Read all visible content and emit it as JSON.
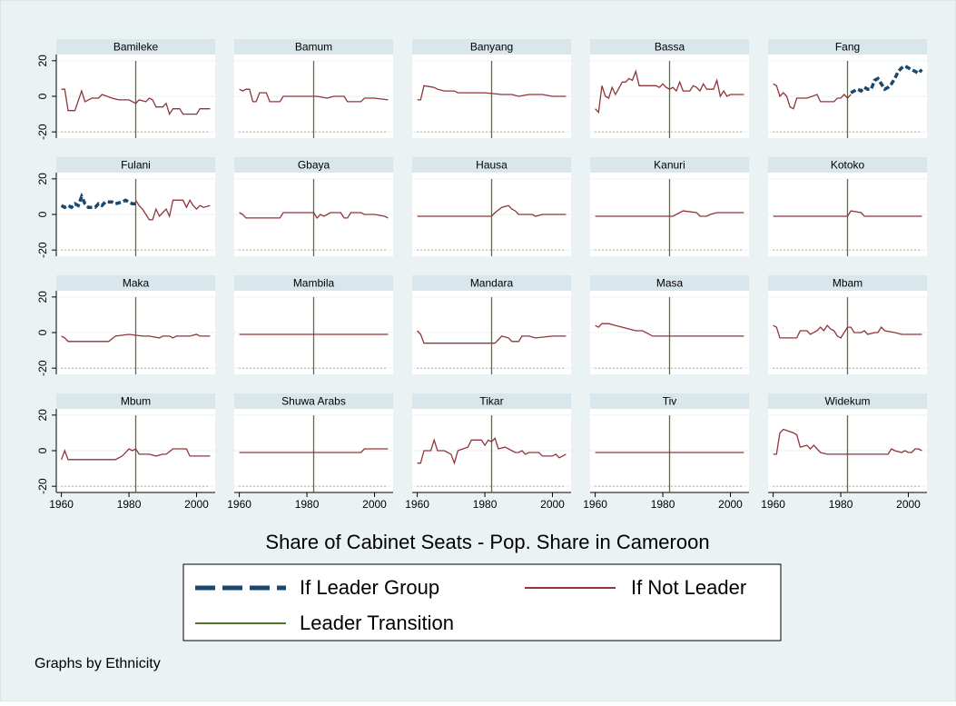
{
  "chart_data": {
    "type": "line",
    "xlabel": "Share of Cabinet Seats - Pop. Share in Cameroon",
    "note": "Graphs by Ethnicity",
    "xlim": [
      1958.5,
      2005.5
    ],
    "xticks": [
      1960,
      1980,
      2000
    ],
    "ylim": [
      -23.5,
      23.5
    ],
    "yticks": [
      -20,
      0,
      20
    ],
    "grid": true,
    "transition_x": 1982,
    "reference_y": -20,
    "series": [
      {
        "name": "If Leader Group",
        "color": "#1a476f",
        "dashed": true
      },
      {
        "name": "If Not Leader",
        "color": "#90353b"
      },
      {
        "name": "Leader Transition",
        "color": "#55752f"
      }
    ],
    "panels": [
      {
        "title": "Bamileke",
        "lines": [
          null,
          {
            "x": [
              1960,
              1961,
              1962,
              1964,
              1966,
              1967,
              1969,
              1971,
              1972,
              1975,
              1977,
              1980,
              1982,
              1983,
              1985,
              1986,
              1987,
              1988,
              1990,
              1991,
              1992,
              1993,
              1995,
              1996,
              2000,
              2001,
              2004
            ],
            "values": [
              4,
              4,
              -8,
              -8,
              3,
              -3,
              -1,
              -1,
              1,
              -1,
              -2,
              -2,
              -4,
              -2,
              -3,
              -1,
              -2,
              -6,
              -6,
              -4,
              -10,
              -7,
              -7,
              -10,
              -10,
              -7,
              -7
            ]
          }
        ]
      },
      {
        "title": "Bamum",
        "lines": [
          null,
          {
            "x": [
              1960,
              1961,
              1962,
              1963,
              1964,
              1965,
              1966,
              1968,
              1969,
              1972,
              1973,
              1983,
              1986,
              1988,
              1991,
              1992,
              1996,
              1997,
              2000,
              2004
            ],
            "values": [
              4,
              3,
              4,
              4,
              -3,
              -3,
              2,
              2,
              -3,
              -3,
              0,
              0,
              -1,
              0,
              0,
              -3,
              -3,
              -1,
              -1,
              -2
            ]
          }
        ]
      },
      {
        "title": "Banyang",
        "lines": [
          null,
          {
            "x": [
              1960,
              1961,
              1962,
              1965,
              1966,
              1968,
              1971,
              1972,
              1980,
              1985,
              1988,
              1990,
              1993,
              1997,
              2000,
              2004
            ],
            "values": [
              -2,
              -2,
              6,
              5,
              4,
              3,
              3,
              2,
              2,
              1,
              1,
              0,
              1,
              1,
              0,
              0
            ]
          }
        ]
      },
      {
        "title": "Bassa",
        "lines": [
          null,
          {
            "x": [
              1960,
              1961,
              1962,
              1963,
              1964,
              1965,
              1966,
              1968,
              1969,
              1970,
              1971,
              1972,
              1973,
              1978,
              1979,
              1980,
              1981,
              1982,
              1983,
              1984,
              1985,
              1986,
              1988,
              1989,
              1990,
              1991,
              1992,
              1993,
              1995,
              1996,
              1997,
              1998,
              1999,
              2000,
              2004
            ],
            "values": [
              -7,
              -9,
              6,
              0,
              -1,
              5,
              1,
              8,
              8,
              10,
              9,
              14,
              6,
              6,
              5,
              7,
              5,
              4,
              5,
              3,
              8,
              3,
              3,
              6,
              5,
              3,
              7,
              4,
              4,
              9,
              0,
              3,
              0,
              1,
              1
            ]
          }
        ]
      },
      {
        "title": "Fang",
        "lines": [
          {
            "x": [
              1983,
              1984,
              1985,
              1986,
              1987,
              1988,
              1989,
              1990,
              1991,
              1992,
              1993,
              1994,
              1995,
              1996,
              1997,
              1998,
              1999,
              2000,
              2001,
              2002,
              2003,
              2004
            ],
            "values": [
              2,
              3,
              4,
              3,
              5,
              4,
              4,
              9,
              10,
              7,
              4,
              5,
              7,
              10,
              14,
              16,
              17,
              16,
              15,
              14,
              13,
              15
            ]
          },
          {
            "x": [
              1960,
              1961,
              1962,
              1963,
              1964,
              1965,
              1966,
              1967,
              1970,
              1973,
              1974,
              1978,
              1979,
              1980,
              1981,
              1982,
              1983
            ],
            "values": [
              7,
              6,
              0,
              2,
              0,
              -6,
              -7,
              -1,
              -1,
              1,
              -3,
              -3,
              -1,
              -1,
              1,
              -1,
              1
            ]
          }
        ]
      },
      {
        "title": "Fulani",
        "lines": [
          {
            "x": [
              1960,
              1961,
              1962,
              1963,
              1964,
              1965,
              1966,
              1967,
              1968,
              1970,
              1971,
              1972,
              1973,
              1975,
              1976,
              1978,
              1979,
              1980,
              1981,
              1982
            ],
            "values": [
              5,
              4,
              5,
              4,
              6,
              5,
              10,
              6,
              4,
              4,
              6,
              5,
              7,
              7,
              6,
              7,
              8,
              7,
              6,
              6
            ]
          },
          {
            "x": [
              1982,
              1983,
              1984,
              1985,
              1986,
              1987,
              1988,
              1989,
              1990,
              1991,
              1992,
              1993,
              1996,
              1997,
              1998,
              1999,
              2000,
              2001,
              2002,
              2004
            ],
            "values": [
              8,
              5,
              3,
              0,
              -3,
              -3,
              3,
              -1,
              1,
              3,
              -1,
              8,
              8,
              4,
              8,
              5,
              3,
              5,
              4,
              5
            ]
          }
        ]
      },
      {
        "title": "Gbaya",
        "lines": [
          null,
          {
            "x": [
              1960,
              1961,
              1962,
              1972,
              1973,
              1982,
              1983,
              1984,
              1985,
              1987,
              1990,
              1991,
              1992,
              1993,
              1996,
              1997,
              2000,
              2003,
              2004
            ],
            "values": [
              1,
              0,
              -2,
              -2,
              1,
              1,
              -2,
              0,
              -1,
              1,
              1,
              -2,
              -2,
              1,
              1,
              0,
              0,
              -1,
              -2
            ]
          }
        ]
      },
      {
        "title": "Hausa",
        "lines": [
          null,
          {
            "x": [
              1960,
              1982,
              1983,
              1985,
              1987,
              1988,
              1989,
              1990,
              1994,
              1995,
              1997,
              2004
            ],
            "values": [
              -1,
              -1,
              1,
              4,
              5,
              3,
              2,
              0,
              0,
              -1,
              0,
              0
            ]
          }
        ]
      },
      {
        "title": "Kanuri",
        "lines": [
          null,
          {
            "x": [
              1960,
              1980,
              1983,
              1985,
              1986,
              1990,
              1991,
              1993,
              1994,
              1996,
              2004
            ],
            "values": [
              -1,
              -1,
              -1,
              1,
              2,
              1,
              -1,
              -1,
              0,
              1,
              1
            ]
          }
        ]
      },
      {
        "title": "Kotoko",
        "lines": [
          null,
          {
            "x": [
              1960,
              1982,
              1983,
              1986,
              1987,
              2004
            ],
            "values": [
              -1,
              -1,
              2,
              1,
              -1,
              -1
            ]
          }
        ]
      },
      {
        "title": "Maka",
        "lines": [
          null,
          {
            "x": [
              1960,
              1961,
              1962,
              1974,
              1976,
              1980,
              1984,
              1986,
              1989,
              1990,
              1992,
              1993,
              1994,
              1998,
              2000,
              2001,
              2004
            ],
            "values": [
              -2,
              -3,
              -5,
              -5,
              -2,
              -1,
              -2,
              -2,
              -3,
              -2,
              -2,
              -3,
              -2,
              -2,
              -1,
              -2,
              -2
            ]
          }
        ]
      },
      {
        "title": "Mambila",
        "lines": [
          null,
          {
            "x": [
              1960,
              2004
            ],
            "values": [
              -1,
              -1
            ]
          }
        ]
      },
      {
        "title": "Mandara",
        "lines": [
          null,
          {
            "x": [
              1960,
              1961,
              1962,
              1983,
              1985,
              1987,
              1988,
              1990,
              1991,
              1993,
              1995,
              2000,
              2004
            ],
            "values": [
              1,
              -1,
              -6,
              -6,
              -2,
              -3,
              -5,
              -5,
              -2,
              -2,
              -3,
              -2,
              -2
            ]
          }
        ]
      },
      {
        "title": "Masa",
        "lines": [
          null,
          {
            "x": [
              1960,
              1961,
              1962,
              1964,
              1966,
              1968,
              1972,
              1974,
              1977,
              2004
            ],
            "values": [
              4,
              3,
              5,
              5,
              4,
              3,
              1,
              1,
              -2,
              -2
            ]
          }
        ]
      },
      {
        "title": "Mbam",
        "lines": [
          null,
          {
            "x": [
              1960,
              1961,
              1962,
              1967,
              1968,
              1970,
              1971,
              1973,
              1974,
              1975,
              1976,
              1977,
              1978,
              1979,
              1980,
              1981,
              1982,
              1983,
              1984,
              1986,
              1987,
              1988,
              1990,
              1991,
              1992,
              1993,
              1996,
              1998,
              2000,
              2004
            ],
            "values": [
              4,
              3,
              -3,
              -3,
              1,
              1,
              -1,
              1,
              3,
              1,
              4,
              2,
              1,
              -2,
              -3,
              0,
              3,
              3,
              0,
              0,
              1,
              -1,
              0,
              0,
              3,
              1,
              0,
              -1,
              -1,
              -1
            ]
          }
        ]
      },
      {
        "title": "Mbum",
        "lines": [
          null,
          {
            "x": [
              1960,
              1961,
              1962,
              1976,
              1978,
              1980,
              1981,
              1982,
              1983,
              1986,
              1988,
              1990,
              1991,
              1993,
              1997,
              1998,
              2002,
              2004
            ],
            "values": [
              -5,
              0,
              -5,
              -5,
              -3,
              1,
              0,
              1,
              -2,
              -2,
              -3,
              -2,
              -2,
              1,
              1,
              -3,
              -3,
              -3
            ]
          }
        ]
      },
      {
        "title": "Shuwa Arabs",
        "lines": [
          null,
          {
            "x": [
              1960,
              1996,
              1997,
              2004
            ],
            "values": [
              -1,
              -1,
              1,
              1
            ]
          }
        ]
      },
      {
        "title": "Tikar",
        "lines": [
          null,
          {
            "x": [
              1960,
              1961,
              1962,
              1964,
              1965,
              1966,
              1968,
              1970,
              1971,
              1972,
              1975,
              1976,
              1979,
              1980,
              1981,
              1982,
              1983,
              1984,
              1986,
              1988,
              1989,
              1990,
              1991,
              1992,
              1993,
              1996,
              1997,
              2000,
              2001,
              2002,
              2003,
              2004
            ],
            "values": [
              -7,
              -7,
              0,
              0,
              6,
              0,
              0,
              -2,
              -7,
              0,
              2,
              6,
              6,
              3,
              6,
              5,
              7,
              1,
              2,
              0,
              -1,
              -1,
              0,
              -2,
              -1,
              -1,
              -3,
              -3,
              -2,
              -4,
              -3,
              -2
            ]
          }
        ]
      },
      {
        "title": "Tiv",
        "lines": [
          null,
          {
            "x": [
              1960,
              2004
            ],
            "values": [
              -1,
              -1
            ]
          }
        ]
      },
      {
        "title": "Widekum",
        "lines": [
          null,
          {
            "x": [
              1960,
              1961,
              1962,
              1963,
              1966,
              1967,
              1968,
              1970,
              1971,
              1972,
              1973,
              1974,
              1976,
              1994,
              1995,
              1996,
              1998,
              1999,
              2000,
              2001,
              2002,
              2003,
              2004
            ],
            "values": [
              -2,
              -2,
              10,
              12,
              10,
              9,
              2,
              3,
              1,
              3,
              1,
              -1,
              -2,
              -2,
              1,
              0,
              -1,
              0,
              -1,
              -1,
              1,
              1,
              0
            ]
          }
        ]
      }
    ]
  }
}
